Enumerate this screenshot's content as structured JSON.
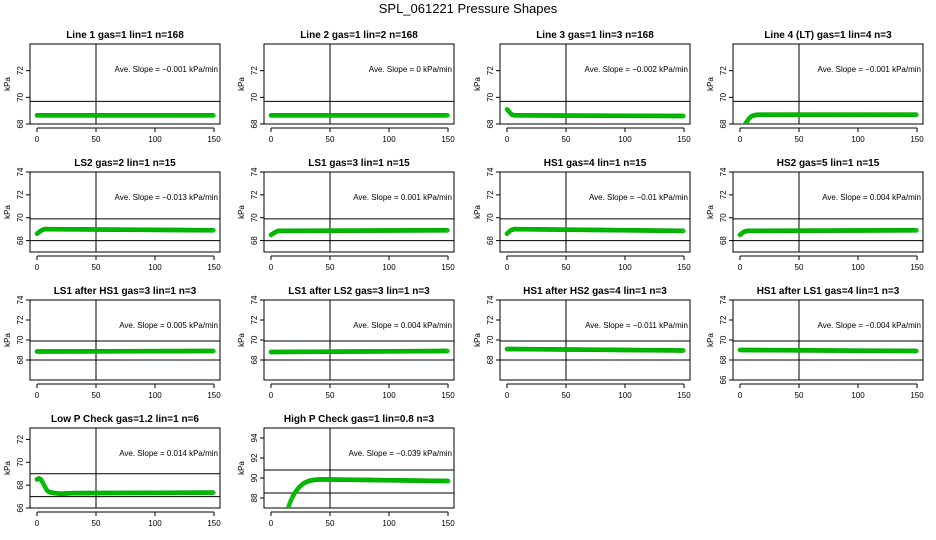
{
  "title": "SPL_061221  Pressure Shapes",
  "slope_label": "Ave. Slope =",
  "slope_unit": "kPa/min",
  "ylabel": "kPa",
  "colors": {
    "points": "#00cc00",
    "points_edge": "#00a000",
    "axes": "#000000"
  },
  "chart_data": [
    {
      "type": "scatter",
      "title": "Line 1 gas=1 lin=1 n=168",
      "slope": "−0.001",
      "xlim": [
        0,
        150
      ],
      "ylim": [
        68,
        74
      ],
      "yticks": [
        68,
        70,
        72
      ],
      "xticks": [
        0,
        50,
        100,
        150
      ],
      "vline": 50,
      "hlines": [
        69.7,
        67.8
      ],
      "series": [
        {
          "x": [
            0,
            150
          ],
          "y": [
            68.65,
            68.65
          ]
        }
      ]
    },
    {
      "type": "scatter",
      "title": "Line 2 gas=1 lin=2 n=168",
      "slope": "0",
      "xlim": [
        0,
        150
      ],
      "ylim": [
        68,
        74
      ],
      "yticks": [
        68,
        70,
        72
      ],
      "xticks": [
        0,
        50,
        100,
        150
      ],
      "vline": 50,
      "hlines": [
        69.7,
        67.8
      ],
      "series": [
        {
          "x": [
            0,
            150
          ],
          "y": [
            68.65,
            68.65
          ]
        }
      ]
    },
    {
      "type": "scatter",
      "title": "Line 3 gas=1 lin=3 n=168",
      "slope": "−0.002",
      "xlim": [
        0,
        150
      ],
      "ylim": [
        68,
        74
      ],
      "yticks": [
        68,
        70,
        72
      ],
      "xticks": [
        0,
        50,
        100,
        150
      ],
      "vline": 50,
      "hlines": [
        69.7,
        67.8
      ],
      "series": [
        {
          "x": [
            0,
            2,
            4,
            6,
            150
          ],
          "y": [
            69.1,
            68.9,
            68.7,
            68.65,
            68.6
          ]
        }
      ]
    },
    {
      "type": "scatter",
      "title": "Line 4 (LT) gas=1 lin=4 n=3",
      "slope": "−0.001",
      "xlim": [
        0,
        150
      ],
      "ylim": [
        68,
        74
      ],
      "yticks": [
        68,
        70,
        72
      ],
      "xticks": [
        0,
        50,
        100,
        150
      ],
      "vline": 50,
      "hlines": [
        69.7,
        67.8
      ],
      "series": [
        {
          "x": [
            0,
            2,
            4,
            6,
            8,
            10,
            12,
            15,
            150
          ],
          "y": [
            67.9,
            67.8,
            67.95,
            68.2,
            68.45,
            68.6,
            68.65,
            68.7,
            68.7
          ]
        }
      ]
    },
    {
      "type": "scatter",
      "title": "LS2 gas=2 lin=1 n=15",
      "slope": "−0.013",
      "xlim": [
        0,
        150
      ],
      "ylim": [
        67,
        74
      ],
      "yticks": [
        68,
        70,
        72,
        74
      ],
      "xticks": [
        0,
        50,
        100,
        150
      ],
      "vline": 50,
      "hlines": [
        69.9,
        68.0
      ],
      "series": [
        {
          "x": [
            0,
            3,
            6,
            150
          ],
          "y": [
            68.6,
            68.85,
            69.0,
            68.9
          ]
        }
      ]
    },
    {
      "type": "scatter",
      "title": "LS1 gas=3 lin=1 n=15",
      "slope": "0.001",
      "xlim": [
        0,
        150
      ],
      "ylim": [
        67,
        74
      ],
      "yticks": [
        68,
        70,
        72,
        74
      ],
      "xticks": [
        0,
        50,
        100,
        150
      ],
      "vline": 50,
      "hlines": [
        69.9,
        68.0
      ],
      "series": [
        {
          "x": [
            0,
            3,
            6,
            150
          ],
          "y": [
            68.5,
            68.7,
            68.85,
            68.9
          ]
        }
      ]
    },
    {
      "type": "scatter",
      "title": "HS1 gas=4 lin=1 n=15",
      "slope": "−0.01",
      "xlim": [
        0,
        150
      ],
      "ylim": [
        67,
        74
      ],
      "yticks": [
        68,
        70,
        72,
        74
      ],
      "xticks": [
        0,
        50,
        100,
        150
      ],
      "vline": 50,
      "hlines": [
        69.9,
        68.0
      ],
      "series": [
        {
          "x": [
            0,
            3,
            6,
            150
          ],
          "y": [
            68.6,
            68.9,
            69.0,
            68.85
          ]
        }
      ]
    },
    {
      "type": "scatter",
      "title": "HS2 gas=5 lin=1 n=15",
      "slope": "0.004",
      "xlim": [
        0,
        150
      ],
      "ylim": [
        67,
        74
      ],
      "yticks": [
        68,
        70,
        72,
        74
      ],
      "xticks": [
        0,
        50,
        100,
        150
      ],
      "vline": 50,
      "hlines": [
        69.9,
        68.0
      ],
      "series": [
        {
          "x": [
            0,
            3,
            6,
            150
          ],
          "y": [
            68.5,
            68.75,
            68.85,
            68.9
          ]
        }
      ]
    },
    {
      "type": "scatter",
      "title": "LS1 after HS1 gas=3 lin=1 n=3",
      "slope": "0.005",
      "xlim": [
        0,
        150
      ],
      "ylim": [
        66,
        74
      ],
      "yticks": [
        68,
        70,
        72,
        74
      ],
      "xticks": [
        0,
        50,
        100,
        150
      ],
      "vline": 50,
      "hlines": [
        69.9,
        68.0
      ],
      "series": [
        {
          "x": [
            0,
            150
          ],
          "y": [
            68.85,
            68.9
          ]
        }
      ]
    },
    {
      "type": "scatter",
      "title": "LS1 after LS2 gas=3 lin=1 n=3",
      "slope": "0.004",
      "xlim": [
        0,
        150
      ],
      "ylim": [
        66,
        74
      ],
      "yticks": [
        68,
        70,
        72,
        74
      ],
      "xticks": [
        0,
        50,
        100,
        150
      ],
      "vline": 50,
      "hlines": [
        69.9,
        68.0
      ],
      "series": [
        {
          "x": [
            0,
            150
          ],
          "y": [
            68.8,
            68.9
          ]
        }
      ]
    },
    {
      "type": "scatter",
      "title": "HS1 after HS2 gas=4 lin=1 n=3",
      "slope": "−0.011",
      "xlim": [
        0,
        150
      ],
      "ylim": [
        66,
        74
      ],
      "yticks": [
        68,
        70,
        72,
        74
      ],
      "xticks": [
        0,
        50,
        100,
        150
      ],
      "vline": 50,
      "hlines": [
        69.9,
        68.0
      ],
      "series": [
        {
          "x": [
            0,
            150
          ],
          "y": [
            69.1,
            68.95
          ]
        }
      ]
    },
    {
      "type": "scatter",
      "title": "HS1 after LS1 gas=4 lin=1 n=3",
      "slope": "−0.004",
      "xlim": [
        0,
        150
      ],
      "ylim": [
        66,
        74
      ],
      "yticks": [
        66,
        68,
        70,
        72,
        74
      ],
      "xticks": [
        0,
        50,
        100,
        150
      ],
      "vline": 50,
      "hlines": [
        69.9,
        68.0
      ],
      "series": [
        {
          "x": [
            0,
            150
          ],
          "y": [
            69.0,
            68.9
          ]
        }
      ]
    },
    {
      "type": "scatter",
      "title": "Low P Check gas=1.2 lin=1 n=6",
      "slope": "0.014",
      "xlim": [
        0,
        150
      ],
      "ylim": [
        66,
        73
      ],
      "yticks": [
        66,
        68,
        70,
        72
      ],
      "xticks": [
        0,
        50,
        100,
        150
      ],
      "vline": 50,
      "hlines": [
        69.0,
        67.0
      ],
      "series": [
        {
          "x": [
            0,
            2,
            4,
            6,
            8,
            10,
            15,
            20,
            30,
            150
          ],
          "y": [
            68.5,
            68.6,
            68.4,
            68.0,
            67.6,
            67.4,
            67.3,
            67.25,
            67.3,
            67.35
          ]
        }
      ]
    },
    {
      "type": "scatter",
      "title": "High P Check gas=1 lin=0.8 n=3",
      "slope": "−0.039",
      "xlim": [
        0,
        150
      ],
      "ylim": [
        87,
        95
      ],
      "yticks": [
        88,
        90,
        92,
        94
      ],
      "xticks": [
        0,
        50,
        100,
        150
      ],
      "vline": 50,
      "hlines": [
        90.8,
        88.5
      ],
      "series": [
        {
          "x": [
            15,
            17,
            20,
            24,
            28,
            32,
            36,
            40,
            50,
            150
          ],
          "y": [
            87.2,
            87.8,
            88.5,
            89.1,
            89.5,
            89.7,
            89.8,
            89.85,
            89.85,
            89.7
          ]
        }
      ]
    }
  ]
}
